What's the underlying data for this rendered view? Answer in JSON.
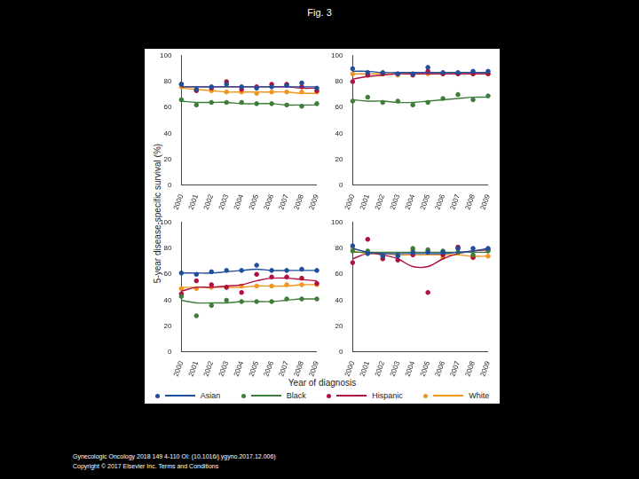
{
  "page": {
    "title": "Fig. 3",
    "y_label": "5-year disease-specific survival (%)",
    "x_label": "Year of diagnosis",
    "footer": [
      "Gynecologic Oncology 2018 149 4-110 OI: (10.1016/j.ygyno.2017.12.006)",
      "Copyright © 2017 Elsevier Inc. Terms and Conditions"
    ]
  },
  "chart_data": [
    {
      "type": "line",
      "categories": [
        "2000",
        "2001",
        "2002",
        "2003",
        "2004",
        "2005",
        "2006",
        "2007",
        "2008",
        "2009"
      ],
      "ylim": [
        0,
        100
      ],
      "yticks": [
        0,
        20,
        40,
        60,
        80,
        100
      ],
      "grid": false,
      "marker": "circle",
      "series": [
        {
          "name": "Asian",
          "color": "#1f4e9c",
          "values": [
            78,
            74,
            76,
            78,
            76,
            75,
            76,
            77,
            79,
            75
          ],
          "trend": [
            76,
            76,
            76,
            76,
            76,
            76,
            76,
            76,
            76,
            76
          ]
        },
        {
          "name": "Black",
          "color": "#3f7d3a",
          "values": [
            66,
            62,
            64,
            64,
            64,
            63,
            63,
            62,
            61,
            63
          ],
          "trend": [
            65,
            64,
            64,
            64,
            63,
            63,
            63,
            62,
            62,
            62
          ]
        },
        {
          "name": "Hispanic",
          "color": "#b0103f",
          "values": [
            78,
            73,
            75,
            80,
            74,
            76,
            78,
            78,
            76,
            73
          ],
          "trend": [
            76,
            76,
            76,
            76,
            76,
            76,
            76,
            76,
            75,
            75
          ]
        },
        {
          "name": "White",
          "color": "#f0961e",
          "values": [
            76,
            74,
            73,
            72,
            72,
            71,
            72,
            72,
            72,
            72
          ],
          "trend": [
            75,
            74,
            73,
            72,
            72,
            72,
            72,
            72,
            71,
            71
          ]
        }
      ]
    },
    {
      "type": "line",
      "categories": [
        "2000",
        "2001",
        "2002",
        "2003",
        "2004",
        "2005",
        "2006",
        "2007",
        "2008",
        "2009"
      ],
      "ylim": [
        0,
        100
      ],
      "yticks": [
        0,
        20,
        40,
        60,
        80,
        100
      ],
      "grid": false,
      "marker": "circle",
      "series": [
        {
          "name": "Asian",
          "color": "#1f4e9c",
          "values": [
            90,
            87,
            87,
            86,
            86,
            91,
            87,
            87,
            88,
            88
          ],
          "trend": [
            88,
            88,
            87,
            87,
            87,
            87,
            87,
            87,
            87,
            87
          ]
        },
        {
          "name": "Black",
          "color": "#3f7d3a",
          "values": [
            65,
            68,
            64,
            65,
            62,
            64,
            67,
            70,
            66,
            69
          ],
          "trend": [
            66,
            65,
            65,
            64,
            64,
            65,
            66,
            67,
            68,
            68
          ]
        },
        {
          "name": "Hispanic",
          "color": "#b0103f",
          "values": [
            80,
            85,
            86,
            86,
            85,
            88,
            86,
            86,
            86,
            86
          ],
          "trend": [
            82,
            84,
            85,
            86,
            86,
            86,
            86,
            86,
            86,
            86
          ]
        },
        {
          "name": "White",
          "color": "#f0961e",
          "values": [
            86,
            85,
            86,
            85,
            86,
            86,
            86,
            86,
            86,
            86
          ],
          "trend": [
            86,
            86,
            86,
            86,
            86,
            86,
            86,
            86,
            86,
            86
          ]
        }
      ]
    },
    {
      "type": "line",
      "categories": [
        "2000",
        "2001",
        "2002",
        "2003",
        "2004",
        "2005",
        "2006",
        "2007",
        "2008",
        "2009"
      ],
      "ylim": [
        0,
        100
      ],
      "yticks": [
        0,
        20,
        40,
        60,
        80,
        100
      ],
      "grid": false,
      "marker": "circle",
      "series": [
        {
          "name": "Asian",
          "color": "#1f4e9c",
          "values": [
            61,
            60,
            62,
            63,
            63,
            67,
            63,
            63,
            64,
            63
          ],
          "trend": [
            61,
            61,
            61,
            62,
            63,
            64,
            63,
            63,
            63,
            63
          ]
        },
        {
          "name": "Black",
          "color": "#3f7d3a",
          "values": [
            43,
            28,
            36,
            40,
            39,
            39,
            39,
            41,
            41,
            41
          ],
          "trend": [
            40,
            38,
            38,
            38,
            39,
            39,
            39,
            40,
            41,
            41
          ]
        },
        {
          "name": "Hispanic",
          "color": "#b0103f",
          "values": [
            45,
            55,
            52,
            50,
            46,
            60,
            58,
            58,
            57,
            53
          ],
          "trend": [
            47,
            50,
            50,
            51,
            52,
            55,
            57,
            57,
            56,
            55
          ]
        },
        {
          "name": "White",
          "color": "#f0961e",
          "values": [
            49,
            49,
            50,
            50,
            51,
            51,
            51,
            52,
            52,
            52
          ],
          "trend": [
            50,
            50,
            50,
            50,
            50,
            51,
            51,
            51,
            52,
            52
          ]
        }
      ]
    },
    {
      "type": "line",
      "categories": [
        "2000",
        "2001",
        "2002",
        "2003",
        "2004",
        "2005",
        "2006",
        "2007",
        "2008",
        "2009"
      ],
      "ylim": [
        0,
        100
      ],
      "yticks": [
        0,
        20,
        40,
        60,
        80,
        100
      ],
      "grid": false,
      "marker": "circle",
      "series": [
        {
          "name": "Asian",
          "color": "#1f4e9c",
          "values": [
            82,
            76,
            74,
            74,
            77,
            77,
            77,
            80,
            80,
            80
          ],
          "trend": [
            80,
            77,
            76,
            76,
            76,
            76,
            76,
            77,
            78,
            80
          ]
        },
        {
          "name": "Black",
          "color": "#3f7d3a",
          "values": [
            78,
            78,
            75,
            75,
            80,
            79,
            78,
            77,
            75,
            78
          ],
          "trend": [
            77,
            77,
            77,
            77,
            77,
            77,
            77,
            77,
            77,
            77
          ]
        },
        {
          "name": "Hispanic",
          "color": "#b0103f",
          "values": [
            69,
            87,
            72,
            71,
            75,
            46,
            75,
            81,
            73,
            79
          ],
          "trend": [
            72,
            76,
            75,
            72,
            66,
            66,
            72,
            76,
            78,
            79
          ]
        },
        {
          "name": "White",
          "color": "#f0961e",
          "values": [
            80,
            77,
            72,
            75,
            79,
            78,
            73,
            80,
            73,
            74
          ],
          "trend": [
            78,
            76,
            76,
            75,
            75,
            75,
            75,
            75,
            74,
            74
          ]
        }
      ]
    }
  ]
}
